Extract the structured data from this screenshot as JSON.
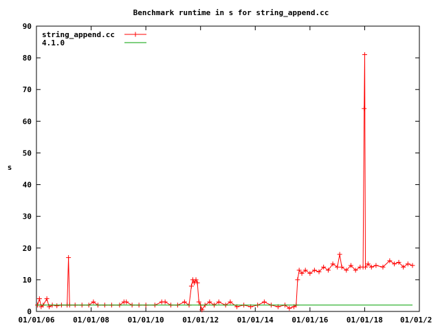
{
  "chart_data": {
    "type": "line",
    "title": "Benchmark runtime in s for string_append.cc",
    "xlabel": "",
    "ylabel": "s",
    "xlim": [
      "2006-01-01",
      "2020-01-01"
    ],
    "ylim": [
      0,
      90
    ],
    "x_ticks": [
      "01/01/06",
      "01/01/08",
      "01/01/10",
      "01/01/12",
      "01/01/14",
      "01/01/16",
      "01/01/18",
      "01/01/2"
    ],
    "y_ticks": [
      "0",
      "10",
      "20",
      "30",
      "40",
      "50",
      "60",
      "70",
      "80",
      "90"
    ],
    "grid": false,
    "legend_position": "top-left",
    "series": [
      {
        "name": "string_append.cc",
        "color": "#ff0000",
        "marker": "plus",
        "points": [
          [
            "2006-01-15",
            2.0
          ],
          [
            "2006-02-10",
            4.0
          ],
          [
            "2006-03-05",
            1.5
          ],
          [
            "2006-04-01",
            2.0
          ],
          [
            "2006-05-20",
            4.0
          ],
          [
            "2006-06-20",
            1.5
          ],
          [
            "2006-08-01",
            2.0
          ],
          [
            "2006-10-01",
            1.8
          ],
          [
            "2006-12-01",
            2.0
          ],
          [
            "2007-02-15",
            2.0
          ],
          [
            "2007-03-05",
            17.0
          ],
          [
            "2007-03-20",
            2.0
          ],
          [
            "2007-06-01",
            2.0
          ],
          [
            "2007-09-01",
            2.0
          ],
          [
            "2007-12-01",
            2.0
          ],
          [
            "2008-02-01",
            3.0
          ],
          [
            "2008-04-01",
            2.0
          ],
          [
            "2008-07-01",
            2.0
          ],
          [
            "2008-10-01",
            2.0
          ],
          [
            "2009-01-15",
            2.0
          ],
          [
            "2009-03-15",
            3.0
          ],
          [
            "2009-04-15",
            3.0
          ],
          [
            "2009-07-01",
            2.0
          ],
          [
            "2009-10-01",
            2.0
          ],
          [
            "2010-01-01",
            2.0
          ],
          [
            "2010-05-01",
            2.0
          ],
          [
            "2010-08-01",
            3.0
          ],
          [
            "2010-09-15",
            3.0
          ],
          [
            "2010-12-01",
            2.0
          ],
          [
            "2011-03-01",
            2.0
          ],
          [
            "2011-06-01",
            3.0
          ],
          [
            "2011-08-01",
            2.0
          ],
          [
            "2011-09-01",
            8.0
          ],
          [
            "2011-09-20",
            10.0
          ],
          [
            "2011-10-10",
            9.0
          ],
          [
            "2011-11-01",
            10.0
          ],
          [
            "2011-11-20",
            9.0
          ],
          [
            "2011-12-10",
            3.0
          ],
          [
            "2012-01-01",
            2.0
          ],
          [
            "2012-01-20",
            0.5
          ],
          [
            "2012-03-01",
            2.0
          ],
          [
            "2012-05-01",
            3.0
          ],
          [
            "2012-07-01",
            2.0
          ],
          [
            "2012-09-01",
            3.0
          ],
          [
            "2012-12-01",
            2.0
          ],
          [
            "2013-02-01",
            3.0
          ],
          [
            "2013-05-01",
            1.5
          ],
          [
            "2013-08-01",
            2.0
          ],
          [
            "2013-11-01",
            1.5
          ],
          [
            "2014-02-01",
            2.0
          ],
          [
            "2014-05-01",
            3.0
          ],
          [
            "2014-08-01",
            2.0
          ],
          [
            "2014-11-01",
            1.5
          ],
          [
            "2015-02-01",
            2.0
          ],
          [
            "2015-04-01",
            1.0
          ],
          [
            "2015-06-01",
            1.5
          ],
          [
            "2015-07-01",
            2.0
          ],
          [
            "2015-07-20",
            10.0
          ],
          [
            "2015-08-10",
            13.0
          ],
          [
            "2015-09-15",
            12.0
          ],
          [
            "2015-11-01",
            13.0
          ],
          [
            "2016-01-01",
            12.0
          ],
          [
            "2016-03-01",
            13.0
          ],
          [
            "2016-05-01",
            12.5
          ],
          [
            "2016-07-01",
            14.0
          ],
          [
            "2016-09-01",
            13.0
          ],
          [
            "2016-11-01",
            15.0
          ],
          [
            "2017-01-01",
            14.0
          ],
          [
            "2017-02-01",
            18.0
          ],
          [
            "2017-03-01",
            14.0
          ],
          [
            "2017-05-01",
            13.0
          ],
          [
            "2017-07-01",
            14.5
          ],
          [
            "2017-09-01",
            13.0
          ],
          [
            "2017-11-01",
            14.0
          ],
          [
            "2017-12-10",
            14.0
          ],
          [
            "2017-12-25",
            64.0
          ],
          [
            "2018-01-01",
            81.0
          ],
          [
            "2018-01-10",
            14.0
          ],
          [
            "2018-02-15",
            15.0
          ],
          [
            "2018-04-01",
            14.0
          ],
          [
            "2018-06-01",
            14.5
          ],
          [
            "2018-09-01",
            14.0
          ],
          [
            "2018-12-01",
            16.0
          ],
          [
            "2019-02-01",
            15.0
          ],
          [
            "2019-04-01",
            15.5
          ],
          [
            "2019-06-01",
            14.0
          ],
          [
            "2019-08-01",
            15.0
          ],
          [
            "2019-10-01",
            14.5
          ]
        ]
      },
      {
        "name": "4.1.0",
        "color": "#00a000",
        "points": [
          [
            "2006-01-01",
            2.0
          ],
          [
            "2019-10-01",
            2.0
          ]
        ]
      }
    ]
  }
}
